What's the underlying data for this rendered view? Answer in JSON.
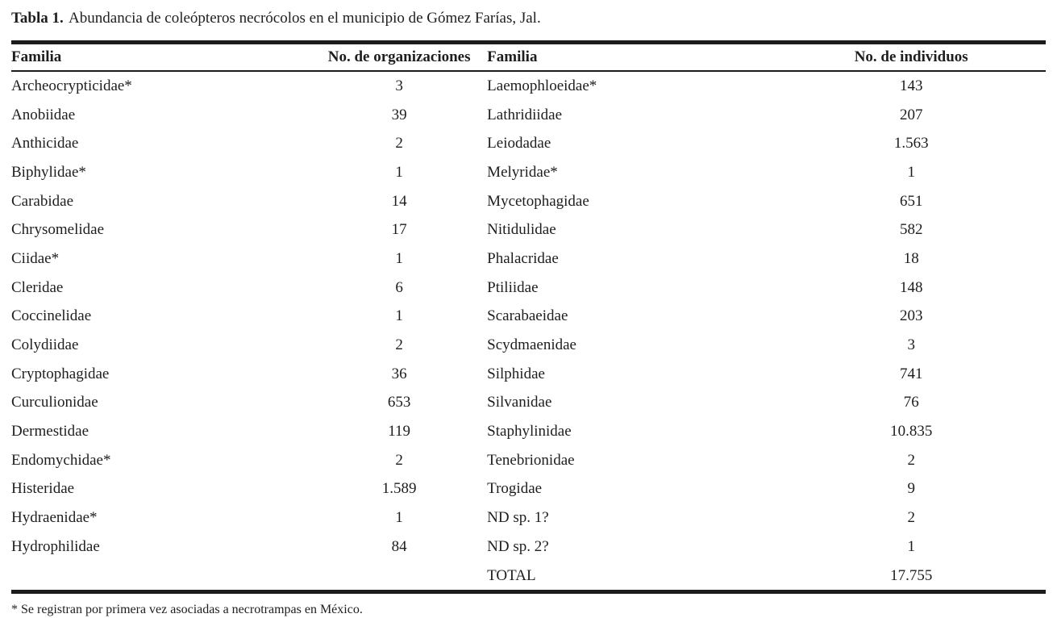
{
  "caption": {
    "label": "Tabla 1.",
    "text": "Abundancia de coleópteros necrócolos en el municipio de Gómez Farías, Jal."
  },
  "table": {
    "headers": [
      "Familia",
      "No. de organizaciones",
      "Familia",
      "No. de individuos"
    ],
    "rows": [
      [
        "Archeocrypticidae*",
        "3",
        "Laemophloeidae*",
        "143"
      ],
      [
        "Anobiidae",
        "39",
        "Lathridiidae",
        "207"
      ],
      [
        "Anthicidae",
        "2",
        "Leiodadae",
        "1.563"
      ],
      [
        "Biphylidae*",
        "1",
        "Melyridae*",
        "1"
      ],
      [
        "Carabidae",
        "14",
        "Mycetophagidae",
        "651"
      ],
      [
        "Chrysomelidae",
        "17",
        "Nitidulidae",
        "582"
      ],
      [
        "Ciidae*",
        "1",
        "Phalacridae",
        "18"
      ],
      [
        "Cleridae",
        "6",
        "Ptiliidae",
        "148"
      ],
      [
        "Coccinelidae",
        "1",
        "Scarabaeidae",
        "203"
      ],
      [
        "Colydiidae",
        "2",
        "Scydmaenidae",
        "3"
      ],
      [
        "Cryptophagidae",
        "36",
        "Silphidae",
        "741"
      ],
      [
        "Curculionidae",
        "653",
        "Silvanidae",
        "76"
      ],
      [
        "Dermestidae",
        "119",
        "Staphylinidae",
        "10.835"
      ],
      [
        "Endomychidae*",
        "2",
        "Tenebrionidae",
        "2"
      ],
      [
        "Histeridae",
        "1.589",
        "Trogidae",
        "9"
      ],
      [
        "Hydraenidae*",
        "1",
        "ND sp. 1?",
        "2"
      ],
      [
        "Hydrophilidae",
        "84",
        "ND sp. 2?",
        "1"
      ],
      [
        "",
        "",
        "TOTAL",
        "17.755"
      ]
    ]
  },
  "footnote": "* Se registran por primera vez asociadas a necrotrampas en México.",
  "colors": {
    "text": "#1e1e1e",
    "rule": "#1c1c1c",
    "background": "#ffffff"
  }
}
